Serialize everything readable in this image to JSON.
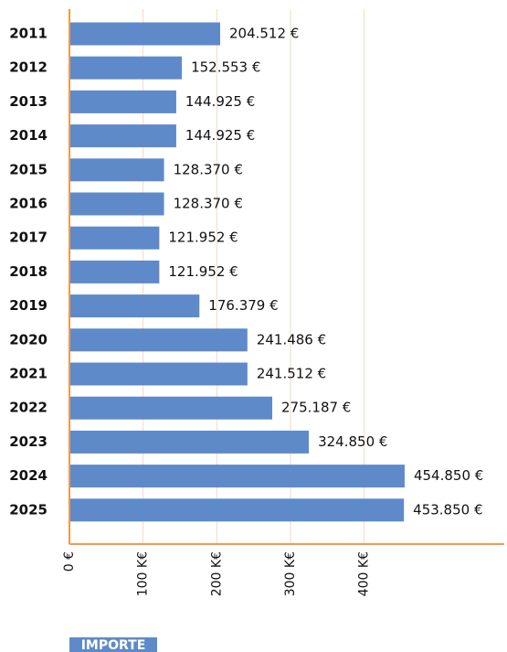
{
  "chart_data": {
    "type": "barh",
    "categories": [
      "2011",
      "2012",
      "2013",
      "2014",
      "2015",
      "2016",
      "2017",
      "2018",
      "2019",
      "2020",
      "2021",
      "2022",
      "2023",
      "2024",
      "2025"
    ],
    "values": [
      204512,
      152553,
      144925,
      144925,
      128370,
      128370,
      121952,
      121952,
      176379,
      241486,
      241512,
      275187,
      324850,
      454850,
      453850
    ],
    "value_labels": [
      "204.512 €",
      "152.553 €",
      "144.925 €",
      "144.925 €",
      "128.370 €",
      "128.370 €",
      "121.952 €",
      "121.952 €",
      "176.379 €",
      "241.486 €",
      "241.512 €",
      "275.187 €",
      "324.850 €",
      "454.850 €",
      "453.850 €"
    ],
    "color": "#5f8ac9",
    "xlim": [
      0,
      590000
    ],
    "xticks": [
      {
        "value": 0,
        "label": "0 €"
      },
      {
        "value": 100000,
        "label": "100 K€"
      },
      {
        "value": 200000,
        "label": "200 K€"
      },
      {
        "value": 300000,
        "label": "300 K€"
      },
      {
        "value": 400000,
        "label": "400 K€"
      }
    ],
    "grid": true,
    "xlabel": "IMPORTE"
  }
}
